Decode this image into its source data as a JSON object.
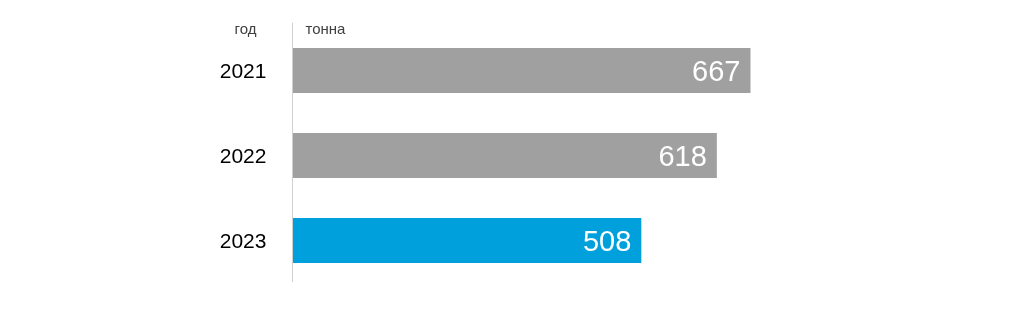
{
  "chart_data": {
    "type": "bar",
    "orientation": "horizontal",
    "ylabel": "год",
    "xlabel": "тонна",
    "categories": [
      "2021",
      "2022",
      "2023"
    ],
    "values": [
      667,
      618,
      508
    ],
    "colors": [
      "#a0a0a0",
      "#a0a0a0",
      "#00a0dc"
    ],
    "data_labels": true,
    "grid": false,
    "tick_labels": "y"
  }
}
